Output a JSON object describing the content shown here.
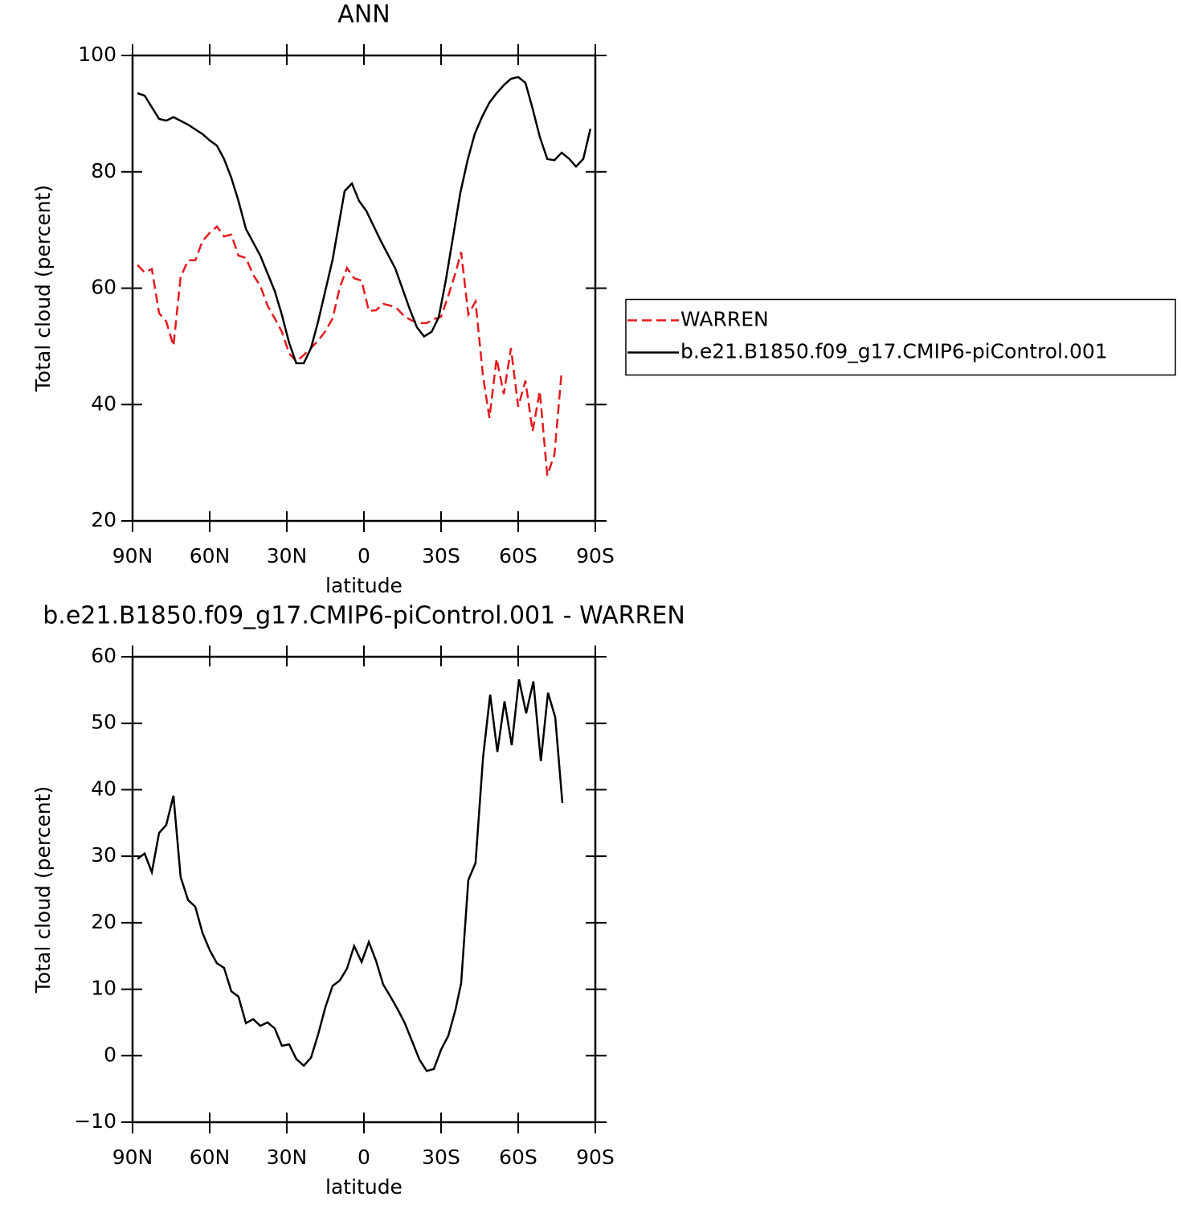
{
  "chart_data": [
    {
      "type": "line",
      "title": "ANN",
      "x_label": "latitude",
      "y_label": "Total cloud (percent)",
      "xlim": [
        90,
        -90
      ],
      "xticks": [
        {
          "value": 90,
          "label": "90N"
        },
        {
          "value": 60,
          "label": "60N"
        },
        {
          "value": 30,
          "label": "30N"
        },
        0,
        {
          "value": -30,
          "label": "30S"
        },
        {
          "value": -60,
          "label": "60S"
        },
        {
          "value": -90,
          "label": "90S"
        }
      ],
      "ylim": [
        20,
        100
      ],
      "yticks": [
        20,
        40,
        60,
        80,
        100
      ],
      "legend": "right",
      "series": [
        {
          "name": "WARREN",
          "color": "#e41a1c",
          "dash": true,
          "x": [
            88.1,
            85.3,
            82.5,
            79.7,
            76.9,
            74.1,
            71.3,
            68.4,
            65.6,
            62.8,
            60,
            57.2,
            54.4,
            51.6,
            48.8,
            45.9,
            43.1,
            40.3,
            37.5,
            34.7,
            31.9,
            29.1,
            26.3,
            23.4,
            20.6,
            17.8,
            15,
            12.2,
            9.4,
            6.6,
            3.8,
            0.9,
            -1.9,
            -4.7,
            -7.5,
            -10.3,
            -13.1,
            -15.9,
            -18.8,
            -21.6,
            -24.4,
            -27.2,
            -30,
            -32.8,
            -35.6,
            -37.8,
            -40.6,
            -43.4,
            -46.3,
            -48.8,
            -51.6,
            -54.4,
            -57.2,
            -60,
            -62.8,
            -65.6,
            -68.4,
            -71.3,
            -74.1,
            -76.9
          ],
          "values": [
            64.0,
            62.7,
            63.3,
            55.7,
            54.3,
            50.1,
            61.9,
            64.8,
            64.8,
            68.1,
            69.5,
            70.6,
            68.9,
            69.2,
            65.6,
            65.2,
            62.3,
            60.4,
            57.0,
            54.8,
            52.5,
            48.8,
            47.4,
            48.5,
            49.7,
            51.0,
            52.6,
            54.8,
            60.1,
            63.5,
            61.7,
            61.3,
            56.1,
            56.2,
            57.3,
            57.0,
            56.4,
            55.1,
            54.4,
            54.0,
            54.0,
            54.7,
            55.1,
            58.7,
            62.6,
            66.2,
            55.5,
            57.7,
            44.9,
            37.7,
            47.9,
            41.8,
            49.7,
            39.6,
            44.1,
            35.4,
            42.3,
            27.8,
            31.4,
            45.7
          ]
        },
        {
          "name": "b.e21.B1850.f09_g17.CMIP6-piControl.001",
          "color": "#000000",
          "dash": false,
          "x": [
            88.1,
            85.3,
            79.7,
            76.9,
            74.1,
            68.4,
            62.8,
            60,
            57.2,
            54.4,
            51.6,
            48.8,
            45.9,
            40.3,
            34.7,
            31.9,
            29.1,
            26.3,
            23.4,
            20.6,
            17.8,
            12.2,
            7.5,
            4.7,
            1.9,
            -0.9,
            -6.6,
            -12.2,
            -17.8,
            -20.6,
            -23.4,
            -26.3,
            -29.1,
            -31.9,
            -37.5,
            -40.3,
            -43.1,
            -45.9,
            -48.8,
            -51.6,
            -54.4,
            -57.2,
            -60,
            -62.8,
            -65.6,
            -68.4,
            -71.3,
            -74.1,
            -76.9,
            -79.7,
            -82.5,
            -85.3,
            -88.1
          ],
          "values": [
            93.5,
            93.1,
            89.1,
            88.8,
            89.4,
            88.1,
            86.5,
            85.4,
            84.5,
            82.2,
            79.0,
            75.0,
            70.2,
            65.6,
            59.5,
            55.4,
            50.6,
            47.1,
            47.1,
            49.7,
            54.3,
            64.9,
            76.7,
            78.0,
            75.0,
            73.3,
            68.1,
            63.4,
            56.4,
            53.3,
            51.7,
            52.5,
            55.0,
            61.5,
            76.4,
            82.0,
            86.5,
            89.4,
            91.9,
            93.5,
            94.9,
            96.0,
            96.3,
            95.3,
            90.9,
            86.0,
            82.2,
            82.0,
            83.3,
            82.3,
            80.9,
            82.2,
            87.4
          ]
        }
      ]
    },
    {
      "type": "line",
      "title": "b.e21.B1850.f09_g17.CMIP6-piControl.001  -  WARREN",
      "x_label": "latitude",
      "y_label": "Total cloud (percent)",
      "xlim": [
        90,
        -90
      ],
      "xticks": [
        {
          "value": 90,
          "label": "90N"
        },
        {
          "value": 60,
          "label": "60N"
        },
        {
          "value": 30,
          "label": "30N"
        },
        0,
        {
          "value": -30,
          "label": "30S"
        },
        {
          "value": -60,
          "label": "60S"
        },
        {
          "value": -90,
          "label": "90S"
        }
      ],
      "ylim": [
        -10,
        60
      ],
      "yticks": [
        {
          "value": -10,
          "label": "−10"
        },
        0,
        10,
        20,
        30,
        40,
        50,
        60
      ],
      "series": [
        {
          "color": "#000000",
          "dash": false,
          "x": [
            88.1,
            85.3,
            82.5,
            79.7,
            76.9,
            74.1,
            71.3,
            68.4,
            65.6,
            62.8,
            60,
            57.2,
            54.4,
            51.6,
            48.8,
            45.9,
            43.1,
            40.3,
            37.5,
            34.7,
            31.9,
            29.1,
            26.3,
            23.4,
            20.6,
            17.8,
            15,
            12.2,
            9.4,
            6.6,
            3.8,
            0.9,
            -1.9,
            -4.7,
            -7.5,
            -10.3,
            -13.1,
            -15.9,
            -18.8,
            -21.6,
            -24.4,
            -27.2,
            -30,
            -32.8,
            -35.6,
            -37.8,
            -40.6,
            -43.4,
            -46.3,
            -49.1,
            -51.9,
            -54.7,
            -57.5,
            -60.3,
            -63.1,
            -65.9,
            -68.8,
            -71.6,
            -74.4,
            -77.2
          ],
          "values": [
            29.6,
            30.4,
            27.6,
            33.5,
            34.7,
            39.1,
            26.9,
            23.4,
            22.4,
            18.5,
            15.9,
            13.9,
            13.2,
            9.7,
            8.9,
            4.9,
            5.5,
            4.5,
            5.0,
            4.1,
            1.5,
            1.7,
            -0.5,
            -1.5,
            -0.3,
            3.2,
            7.3,
            10.5,
            11.3,
            13.1,
            16.5,
            14.1,
            17.1,
            14.3,
            10.7,
            8.9,
            7.0,
            4.9,
            2.1,
            -0.6,
            -2.3,
            -2.0,
            0.9,
            3.0,
            6.9,
            10.9,
            26.4,
            29.0,
            44.8,
            54.3,
            45.7,
            53.3,
            46.7,
            56.6,
            51.5,
            56.3,
            44.3,
            54.6,
            50.9,
            38.0
          ]
        }
      ]
    }
  ]
}
